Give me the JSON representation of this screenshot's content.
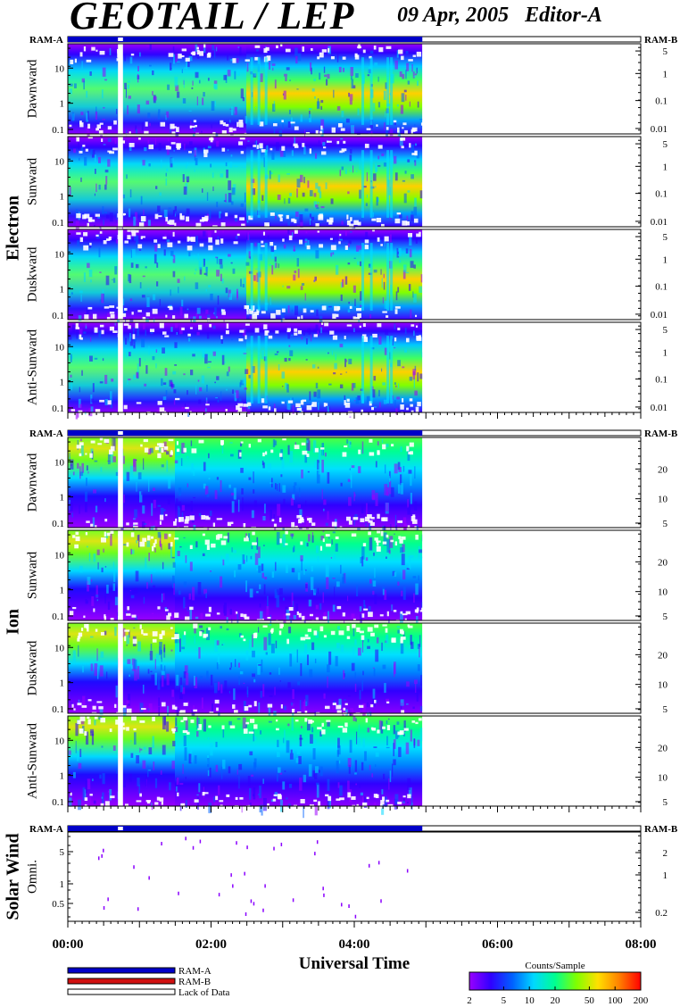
{
  "header": {
    "title": "GEOTAIL / LEP",
    "date": "09 Apr, 2005",
    "editor": "Editor-A"
  },
  "colors": {
    "ram_a": "#0000c8",
    "ram_b": "#d01010",
    "scale": [
      "#9a00ff",
      "#3000ff",
      "#0060ff",
      "#00d8ff",
      "#00ff90",
      "#80ff00",
      "#ffe000",
      "#ff8000",
      "#ff0000"
    ]
  },
  "chart_data": {
    "type": "heatmap",
    "xlabel": "Universal Time",
    "x_ticks": [
      "00:00",
      "02:00",
      "04:00",
      "06:00",
      "08:00"
    ],
    "xlim_hours": [
      0,
      8
    ],
    "data_end_hours": 4.95,
    "gap_hours": [
      0.7,
      0.77
    ],
    "ram_labels": {
      "left": "RAM-A",
      "right": "RAM-B"
    },
    "groups": [
      {
        "name": "Electron",
        "panels": [
          "Dawnward",
          "Sunward",
          "Duskward",
          "Anti-Sunward"
        ],
        "y_ticks_left": [
          "10",
          "1",
          "0.1"
        ],
        "y_ticks_right": [
          "5",
          "1",
          "0.1",
          "0.01"
        ]
      },
      {
        "name": "Ion",
        "panels": [
          "Dawnward",
          "Sunward",
          "Duskward",
          "Anti-Sunward"
        ],
        "y_ticks_left": [
          "10",
          "1",
          "0.1"
        ],
        "y_ticks_right": [
          "20",
          "10",
          "5"
        ]
      },
      {
        "name": "Solar Wind",
        "panels": [
          "Omni."
        ],
        "y_ticks_left": [
          "5",
          "1",
          "0.5"
        ],
        "y_ticks_right": [
          "2",
          "1",
          "0.2"
        ]
      }
    ],
    "legend": {
      "items": [
        {
          "label": "RAM-A",
          "color": "#0000c8"
        },
        {
          "label": "RAM-B",
          "color": "#d01010"
        },
        {
          "label": "Lack of Data",
          "color": "#ffffff"
        }
      ]
    },
    "colorbar": {
      "title": "Counts/Sample",
      "ticks": [
        "2",
        "5",
        "10",
        "20",
        "50",
        "100",
        "200"
      ],
      "range": [
        2,
        200
      ]
    }
  }
}
